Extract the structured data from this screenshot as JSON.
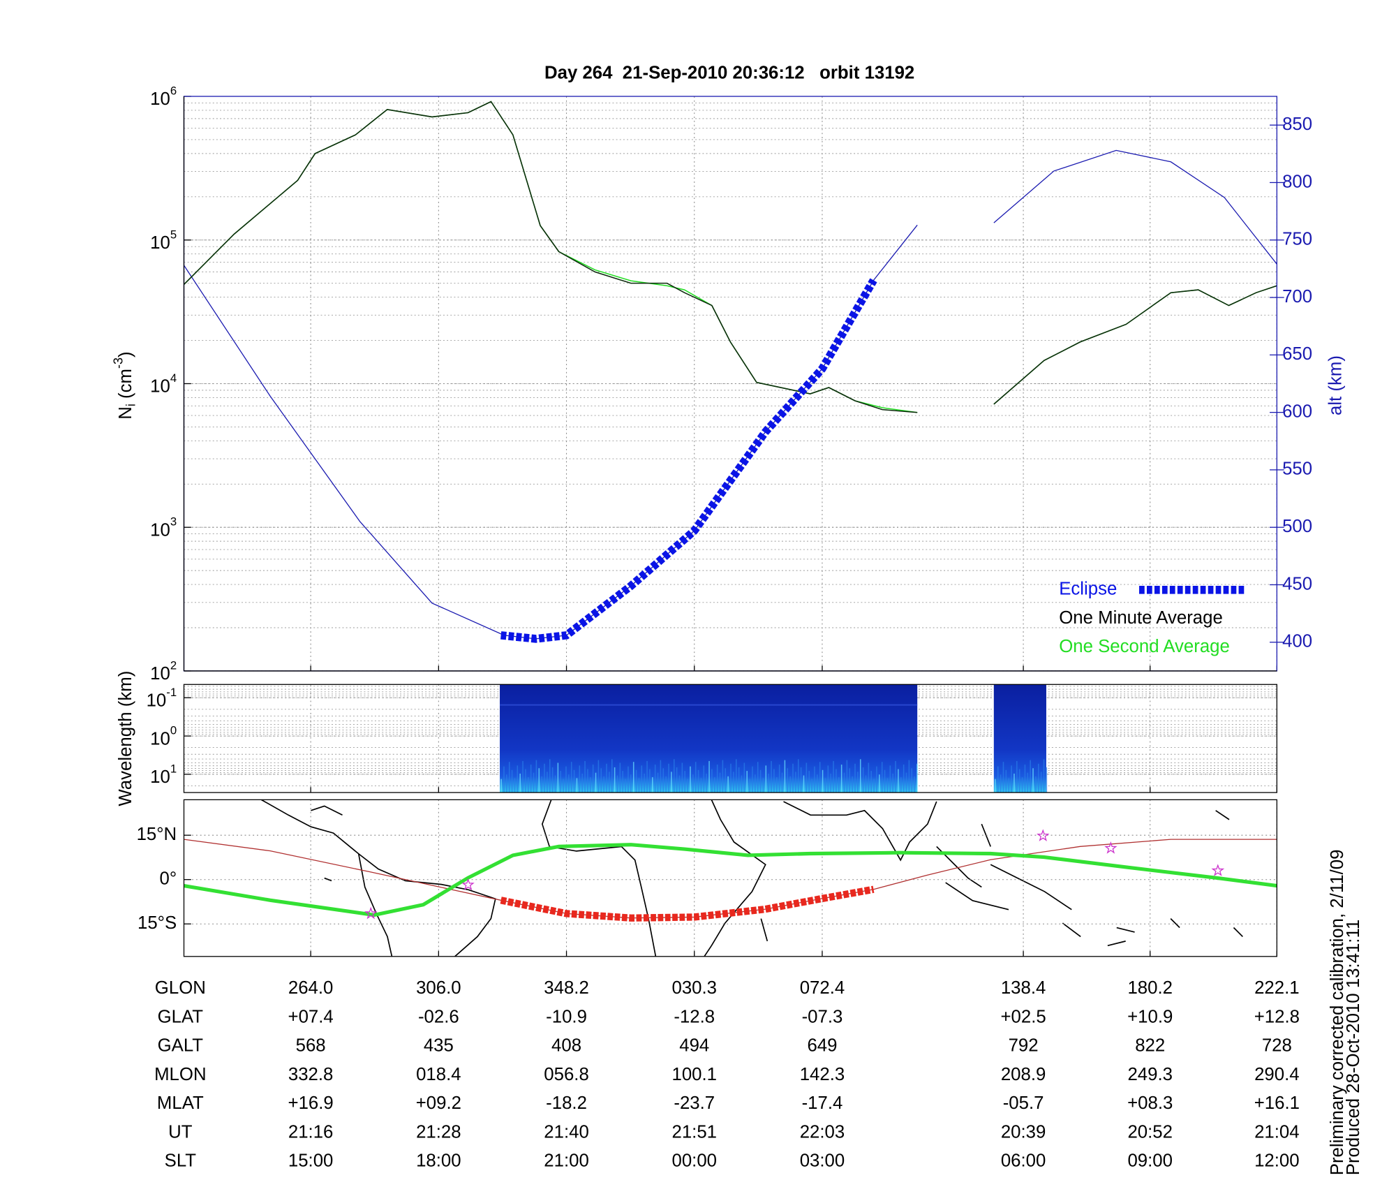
{
  "chart_data": [
    {
      "type": "line",
      "title": "Day 264  21-Sep-2010 20:36:12   orbit 13192",
      "ylabel": [
        "N",
        "i",
        " (cm",
        "-3",
        ")"
      ],
      "y2label": "alt (km)",
      "yscale": "log",
      "ylim": [
        100,
        1000000
      ],
      "yticks": [
        {
          "value": 100,
          "label": "10",
          "power": "2"
        },
        {
          "value": 1000,
          "label": "10",
          "power": "3"
        },
        {
          "value": 10000,
          "label": "10",
          "power": "4"
        },
        {
          "value": 100000,
          "label": "10",
          "power": "5"
        },
        {
          "value": 1000000,
          "label": "10",
          "power": "6"
        }
      ],
      "y2lim": [
        375,
        875
      ],
      "y2ticks": [
        400,
        450,
        500,
        550,
        600,
        650,
        700,
        750,
        800,
        850
      ],
      "xlim": [
        0,
        100
      ],
      "xticks": [
        11.6,
        23.3,
        35.0,
        46.7,
        58.4,
        76.8,
        88.4,
        100
      ],
      "grid": true,
      "legend": "lower right",
      "series": [
        {
          "name": "Eclipse",
          "color": "#0a14e6",
          "axis": "y2",
          "style": "dashed-thick",
          "x": [
            29.0,
            32.2,
            35.0,
            40.9,
            46.7,
            53.2,
            58.4,
            63.1
          ],
          "values": [
            406,
            403,
            406,
            449,
            497,
            583,
            638,
            715
          ]
        },
        {
          "name": "One Minute Average",
          "color": "#0d2a0d",
          "x": [
            0,
            4.6,
            10.4,
            12.0,
            15.7,
            18.6,
            22.7,
            26.0,
            28.1,
            30.1,
            32.6,
            34.3,
            37.6,
            40.9,
            44.2,
            45.8,
            48.3,
            50.0,
            52.4,
            57.3,
            59.0,
            61.4,
            63.9,
            67.1,
            70.5,
            74.1,
            78.7,
            82.0,
            86.2,
            90.3,
            92.8,
            95.6,
            98.1,
            100
          ],
          "values": [
            49000,
            110000,
            260000,
            400000,
            540000,
            810000,
            720000,
            770000,
            920000,
            540000,
            126000,
            83000,
            60000,
            50000,
            50000,
            43000,
            35000,
            19500,
            10200,
            8500,
            9400,
            7600,
            6600,
            6300,
            null,
            7200,
            14500,
            19500,
            25900,
            43000,
            45000,
            35000,
            43000,
            48000
          ]
        },
        {
          "name": "One Second Average",
          "color": "#22dd22",
          "x": [
            0,
            4.6,
            10.4,
            12.0,
            15.7,
            18.6,
            22.7,
            26.0,
            28.1,
            30.1,
            32.6,
            34.3,
            37.6,
            40.9,
            44.2,
            45.8,
            48.3,
            50.0,
            52.4,
            57.3,
            59.0,
            61.4,
            63.9,
            67.1,
            70.5,
            74.1,
            78.7,
            82.0,
            86.2,
            90.3,
            92.8,
            95.6,
            98.1,
            100
          ],
          "values": [
            49000,
            110000,
            260000,
            400000,
            540000,
            810000,
            720000,
            770000,
            920000,
            540000,
            126000,
            83000,
            62000,
            52000,
            48000,
            45000,
            35000,
            19500,
            10200,
            8500,
            9400,
            7600,
            6800,
            6300,
            null,
            7200,
            14500,
            19500,
            25900,
            43000,
            45000,
            35000,
            43000,
            48000
          ]
        },
        {
          "color": "#1a1ab0",
          "axis": "y2",
          "x": [
            0,
            7.9,
            16.1,
            22.7,
            29.3,
            32.2,
            35.0,
            40.9,
            46.7,
            53.2,
            58.4,
            63.1,
            67.1,
            70.5,
            74.1,
            79.6,
            85.3,
            90.3,
            95.2,
            100
          ],
          "values": [
            728,
            614,
            505,
            434,
            406,
            403,
            406,
            449,
            497,
            583,
            638,
            715,
            763,
            null,
            765,
            810,
            828,
            818,
            787,
            729
          ]
        }
      ]
    },
    {
      "type": "spectrogram",
      "ylabel": "Wavelength (km)",
      "yscale": "log",
      "ylim": [
        30,
        0.045
      ],
      "yticks": [
        {
          "value": 0.1,
          "label": "10",
          "power": "-1"
        },
        {
          "value": 1,
          "label": "10",
          "power": "0"
        },
        {
          "value": 10,
          "label": "10",
          "power": "1"
        }
      ],
      "xlim": [
        0,
        100
      ],
      "xticks": [
        11.6,
        23.3,
        35.0,
        46.7,
        58.4,
        76.8,
        88.4,
        100
      ],
      "x_ranges": [
        [
          28.9,
          67.1
        ],
        [
          74.1,
          78.9
        ]
      ],
      "color": "#0a2aa8"
    },
    {
      "type": "map",
      "ylim": [
        -26,
        27
      ],
      "yticks": [
        {
          "value": 15,
          "label": "15°N"
        },
        {
          "value": 0,
          "label": "0°"
        },
        {
          "value": -15,
          "label": "15°S"
        }
      ],
      "xlim": [
        0,
        100
      ],
      "xticks": [
        11.6,
        23.3,
        35.0,
        46.7,
        58.4,
        76.8,
        88.4,
        100
      ],
      "series": [
        {
          "color": "#b03030",
          "style": "thin",
          "x": [
            0,
            7.9,
            16.9,
            24.4,
            29.0,
            35.0,
            40.9,
            46.7,
            53.2,
            58.4,
            63.1,
            68.0,
            73.8,
            82.0,
            90.3,
            100
          ],
          "values": [
            13.6,
            9.7,
            2.7,
            -3.3,
            -7,
            -11.5,
            -13,
            -12.7,
            -10,
            -6.4,
            -3.3,
            1.5,
            6.7,
            11.2,
            13.6,
            13.6
          ]
        },
        {
          "color": "#33e033",
          "style": "thick",
          "x": [
            0,
            7.9,
            17.4,
            21.9,
            26.0,
            30.1,
            34.3,
            40.9,
            45.8,
            51.6,
            57.3,
            65.5,
            73.8,
            78.7,
            86.2,
            94.4,
            100
          ],
          "values": [
            -2.1,
            -7,
            -12,
            -8.5,
            0.6,
            8.2,
            11.2,
            11.8,
            10.3,
            8.2,
            8.8,
            9.1,
            8.8,
            7.6,
            4.2,
            0.6,
            -2.1
          ]
        },
        {
          "color": "#e8281e",
          "style": "dashed-thick",
          "x": [
            29.0,
            35.0,
            40.9,
            46.7,
            53.2,
            58.4,
            63.1
          ],
          "values": [
            -7,
            -11.5,
            -13,
            -12.7,
            -10,
            -6.4,
            -3.3
          ]
        }
      ],
      "stars": {
        "color": "#cc33cc",
        "x": [
          17.1,
          26.0,
          78.6,
          84.8,
          94.6
        ],
        "values": [
          -11.5,
          -1.8,
          14.8,
          10.6,
          3.0
        ]
      }
    }
  ],
  "table": {
    "rows": [
      {
        "label": "GLON",
        "cells": [
          "264.0",
          "306.0",
          "348.2",
          "030.3",
          "072.4",
          "138.4",
          "180.2",
          "222.1"
        ]
      },
      {
        "label": "GLAT",
        "cells": [
          "+07.4",
          "-02.6",
          "-10.9",
          "-12.8",
          "-07.3",
          "+02.5",
          "+10.9",
          "+12.8"
        ]
      },
      {
        "label": "GALT",
        "cells": [
          "568",
          "435",
          "408",
          "494",
          "649",
          "792",
          "822",
          "728"
        ]
      },
      {
        "label": "MLON",
        "cells": [
          "332.8",
          "018.4",
          "056.8",
          "100.1",
          "142.3",
          "208.9",
          "249.3",
          "290.4"
        ]
      },
      {
        "label": "MLAT",
        "cells": [
          "+16.9",
          "+09.2",
          "-18.2",
          "-23.7",
          "-17.4",
          "-05.7",
          "+08.3",
          "+16.1"
        ]
      },
      {
        "label": "UT",
        "cells": [
          "21:16",
          "21:28",
          "21:40",
          "21:51",
          "22:03",
          "20:39",
          "20:52",
          "21:04"
        ]
      },
      {
        "label": "SLT",
        "cells": [
          "15:00",
          "18:00",
          "21:00",
          "00:00",
          "03:00",
          "06:00",
          "09:00",
          "12:00"
        ]
      }
    ]
  },
  "notes": [
    "Preliminary corrected calibration, 2/11/09",
    "Produced 28-Oct-2010 13:41:11"
  ]
}
